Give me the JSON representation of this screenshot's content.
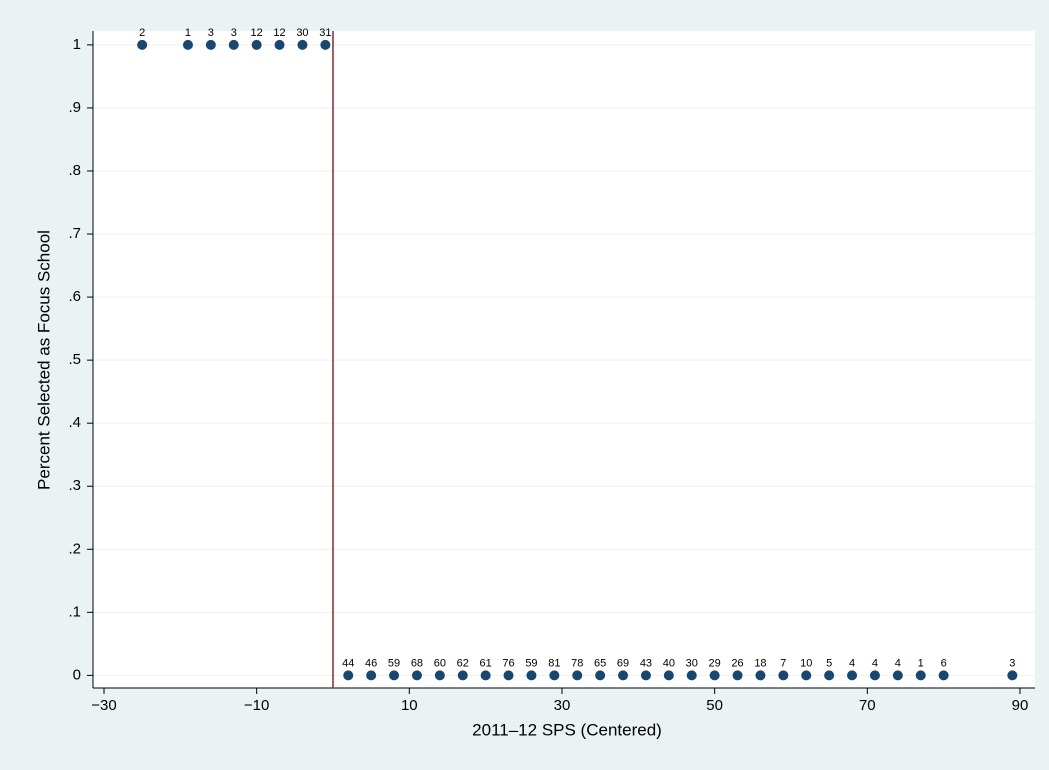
{
  "chart_data": {
    "type": "scatter",
    "x_label": "2011–12 SPS (Centered)",
    "y_label": "Percent Selected as Focus School",
    "x": [
      -25,
      -19,
      -16,
      -13,
      -10,
      -7,
      -4,
      -1,
      2,
      5,
      8,
      11,
      14,
      17,
      20,
      23,
      26,
      29,
      32,
      35,
      38,
      41,
      44,
      47,
      50,
      53,
      56,
      59,
      62,
      65,
      68,
      71,
      74,
      77,
      80,
      89
    ],
    "values": [
      1,
      1,
      1,
      1,
      1,
      1,
      1,
      1,
      0,
      0,
      0,
      0,
      0,
      0,
      0,
      0,
      0,
      0,
      0,
      0,
      0,
      0,
      0,
      0,
      0,
      0,
      0,
      0,
      0,
      0,
      0,
      0,
      0,
      0,
      0,
      0
    ],
    "point_labels": [
      2,
      1,
      3,
      3,
      12,
      12,
      30,
      31,
      44,
      46,
      59,
      68,
      60,
      62,
      61,
      76,
      59,
      81,
      78,
      65,
      69,
      43,
      40,
      30,
      29,
      26,
      18,
      7,
      10,
      5,
      4,
      4,
      4,
      1,
      6,
      3
    ],
    "color": "#1a476f",
    "vline": 0,
    "vline_color": "#90353b",
    "xlim": [
      -31.44,
      91.97
    ],
    "ylim": [
      -0.02,
      1.022
    ],
    "xticks": [
      {
        "value": -30,
        "label": "−30"
      },
      {
        "value": -10,
        "label": "−10"
      },
      10,
      30,
      50,
      70,
      90
    ],
    "yticks": [
      0,
      {
        "value": 0.1,
        "label": ".1"
      },
      {
        "value": 0.2,
        "label": ".2"
      },
      {
        "value": 0.3,
        "label": ".3"
      },
      {
        "value": 0.4,
        "label": ".4"
      },
      {
        "value": 0.5,
        "label": ".5"
      },
      {
        "value": 0.6,
        "label": ".6"
      },
      {
        "value": 0.7,
        "label": ".7"
      },
      {
        "value": 0.8,
        "label": ".8"
      },
      {
        "value": 0.9,
        "label": ".9"
      },
      1
    ],
    "grid": true
  }
}
